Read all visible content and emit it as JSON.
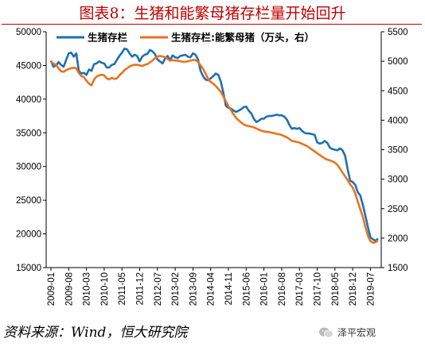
{
  "title": "图表8：生猪和能繁母猪存栏量开始回升",
  "source": "资料来源：Wind，恒大研究院",
  "watermark": "泽平宏观",
  "colors": {
    "title": "#c00000",
    "series_1": "#1f6fb5",
    "series_2": "#e8731f"
  },
  "chart_data": {
    "type": "line",
    "legend_position": "top",
    "grid": false,
    "x_ticks": [
      "2009-01",
      "2009-08",
      "2010-03",
      "2010-10",
      "2011-05",
      "2011-12",
      "2012-07",
      "2013-02",
      "2013-09",
      "2014-04",
      "2014-11",
      "2015-06",
      "2016-01",
      "2016-08",
      "2017-03",
      "2017-10",
      "2018-05",
      "2018-12",
      "2019-07"
    ],
    "x_range": [
      "2009-01",
      "2019-10"
    ],
    "y_left": {
      "min": 15000,
      "max": 50000,
      "ticks": [
        15000,
        20000,
        25000,
        30000,
        35000,
        40000,
        45000,
        50000
      ]
    },
    "y_right": {
      "min": 1500,
      "max": 5500,
      "ticks": [
        1500,
        2000,
        2500,
        3000,
        3500,
        4000,
        4500,
        5000,
        5500
      ]
    },
    "series": [
      {
        "name": "生猪存栏",
        "axis": "left",
        "color": "#1f6fb5",
        "points": [
          [
            "2009-01",
            45700
          ],
          [
            "2009-02",
            44800
          ],
          [
            "2009-03",
            45000
          ],
          [
            "2009-04",
            45500
          ],
          [
            "2009-05",
            45100
          ],
          [
            "2009-06",
            44800
          ],
          [
            "2009-07",
            45800
          ],
          [
            "2009-08",
            46800
          ],
          [
            "2009-09",
            46900
          ],
          [
            "2009-10",
            46300
          ],
          [
            "2009-11",
            46800
          ],
          [
            "2009-12",
            44200
          ],
          [
            "2010-01",
            43800
          ],
          [
            "2010-02",
            43900
          ],
          [
            "2010-03",
            43600
          ],
          [
            "2010-04",
            44400
          ],
          [
            "2010-05",
            44200
          ],
          [
            "2010-06",
            45200
          ],
          [
            "2010-07",
            45300
          ],
          [
            "2010-08",
            45600
          ],
          [
            "2010-09",
            45400
          ],
          [
            "2010-10",
            45300
          ],
          [
            "2010-11",
            44700
          ],
          [
            "2010-12",
            44700
          ],
          [
            "2011-01",
            45100
          ],
          [
            "2011-02",
            45200
          ],
          [
            "2011-03",
            45800
          ],
          [
            "2011-04",
            46400
          ],
          [
            "2011-05",
            46900
          ],
          [
            "2011-06",
            47500
          ],
          [
            "2011-07",
            47400
          ],
          [
            "2011-08",
            46800
          ],
          [
            "2011-09",
            46300
          ],
          [
            "2011-10",
            46600
          ],
          [
            "2011-11",
            46400
          ],
          [
            "2011-12",
            45600
          ],
          [
            "2012-01",
            46300
          ],
          [
            "2012-02",
            46600
          ],
          [
            "2012-03",
            46700
          ],
          [
            "2012-04",
            47300
          ],
          [
            "2012-05",
            47100
          ],
          [
            "2012-06",
            46700
          ],
          [
            "2012-07",
            45900
          ],
          [
            "2012-08",
            45600
          ],
          [
            "2012-09",
            45300
          ],
          [
            "2012-10",
            46000
          ],
          [
            "2012-11",
            46400
          ],
          [
            "2012-12",
            45800
          ],
          [
            "2013-01",
            46500
          ],
          [
            "2013-02",
            46200
          ],
          [
            "2013-03",
            46100
          ],
          [
            "2013-04",
            46400
          ],
          [
            "2013-05",
            46500
          ],
          [
            "2013-06",
            46600
          ],
          [
            "2013-07",
            46300
          ],
          [
            "2013-08",
            46200
          ],
          [
            "2013-09",
            46800
          ],
          [
            "2013-10",
            46600
          ],
          [
            "2013-11",
            45900
          ],
          [
            "2013-12",
            44200
          ],
          [
            "2014-01",
            43400
          ],
          [
            "2014-02",
            42900
          ],
          [
            "2014-03",
            42800
          ],
          [
            "2014-04",
            43100
          ],
          [
            "2014-05",
            43400
          ],
          [
            "2014-06",
            43800
          ],
          [
            "2014-07",
            43600
          ],
          [
            "2014-08",
            42600
          ],
          [
            "2014-09",
            40900
          ],
          [
            "2014-10",
            39000
          ],
          [
            "2014-11",
            38700
          ],
          [
            "2014-12",
            38600
          ],
          [
            "2015-01",
            38300
          ],
          [
            "2015-02",
            38100
          ],
          [
            "2015-03",
            38300
          ],
          [
            "2015-04",
            38500
          ],
          [
            "2015-05",
            38800
          ],
          [
            "2015-06",
            38900
          ],
          [
            "2015-07",
            38300
          ],
          [
            "2015-08",
            37900
          ],
          [
            "2015-09",
            37100
          ],
          [
            "2015-10",
            36600
          ],
          [
            "2015-11",
            36800
          ],
          [
            "2015-12",
            37100
          ],
          [
            "2016-01",
            37100
          ],
          [
            "2016-02",
            37400
          ],
          [
            "2016-03",
            37500
          ],
          [
            "2016-04",
            37500
          ],
          [
            "2016-05",
            37600
          ],
          [
            "2016-06",
            37700
          ],
          [
            "2016-07",
            37600
          ],
          [
            "2016-08",
            37600
          ],
          [
            "2016-09",
            37400
          ],
          [
            "2016-10",
            37000
          ],
          [
            "2016-11",
            36200
          ],
          [
            "2016-12",
            35600
          ],
          [
            "2017-01",
            35700
          ],
          [
            "2017-02",
            35600
          ],
          [
            "2017-03",
            35700
          ],
          [
            "2017-04",
            35300
          ],
          [
            "2017-05",
            35000
          ],
          [
            "2017-06",
            34900
          ],
          [
            "2017-07",
            34900
          ],
          [
            "2017-08",
            34800
          ],
          [
            "2017-09",
            34700
          ],
          [
            "2017-10",
            33600
          ],
          [
            "2017-11",
            33400
          ],
          [
            "2017-12",
            33500
          ],
          [
            "2018-01",
            33800
          ],
          [
            "2018-02",
            33500
          ],
          [
            "2018-03",
            32800
          ],
          [
            "2018-04",
            32600
          ],
          [
            "2018-05",
            32500
          ],
          [
            "2018-06",
            32400
          ],
          [
            "2018-07",
            32700
          ],
          [
            "2018-08",
            32400
          ],
          [
            "2018-09",
            31600
          ],
          [
            "2018-10",
            29600
          ],
          [
            "2018-11",
            27900
          ],
          [
            "2018-12",
            27700
          ],
          [
            "2019-01",
            27300
          ],
          [
            "2019-02",
            26200
          ],
          [
            "2019-03",
            25700
          ],
          [
            "2019-04",
            24300
          ],
          [
            "2019-05",
            22700
          ],
          [
            "2019-06",
            21000
          ],
          [
            "2019-07",
            19500
          ],
          [
            "2019-08",
            19200
          ],
          [
            "2019-09",
            19000
          ],
          [
            "2019-10",
            19300
          ]
        ]
      },
      {
        "name": "生猪存栏:能繁母猪（万头，右）",
        "axis": "right",
        "color": "#e8731f",
        "points": [
          [
            "2009-01",
            4990
          ],
          [
            "2009-02",
            4960
          ],
          [
            "2009-03",
            4940
          ],
          [
            "2009-04",
            4880
          ],
          [
            "2009-05",
            4830
          ],
          [
            "2009-06",
            4820
          ],
          [
            "2009-07",
            4850
          ],
          [
            "2009-08",
            4870
          ],
          [
            "2009-09",
            4880
          ],
          [
            "2009-10",
            4890
          ],
          [
            "2009-11",
            4880
          ],
          [
            "2009-12",
            4800
          ],
          [
            "2010-01",
            4750
          ],
          [
            "2010-02",
            4730
          ],
          [
            "2010-03",
            4670
          ],
          [
            "2010-04",
            4620
          ],
          [
            "2010-05",
            4590
          ],
          [
            "2010-06",
            4690
          ],
          [
            "2010-07",
            4740
          ],
          [
            "2010-08",
            4760
          ],
          [
            "2010-09",
            4770
          ],
          [
            "2010-10",
            4760
          ],
          [
            "2010-11",
            4710
          ],
          [
            "2010-12",
            4690
          ],
          [
            "2011-01",
            4720
          ],
          [
            "2011-02",
            4700
          ],
          [
            "2011-03",
            4710
          ],
          [
            "2011-04",
            4760
          ],
          [
            "2011-05",
            4800
          ],
          [
            "2011-06",
            4850
          ],
          [
            "2011-07",
            4880
          ],
          [
            "2011-08",
            4910
          ],
          [
            "2011-09",
            4930
          ],
          [
            "2011-10",
            4940
          ],
          [
            "2011-11",
            4940
          ],
          [
            "2011-12",
            4930
          ],
          [
            "2012-01",
            4920
          ],
          [
            "2012-02",
            4940
          ],
          [
            "2012-03",
            4950
          ],
          [
            "2012-04",
            4980
          ],
          [
            "2012-05",
            5010
          ],
          [
            "2012-06",
            5050
          ],
          [
            "2012-07",
            5080
          ],
          [
            "2012-08",
            5090
          ],
          [
            "2012-09",
            5080
          ],
          [
            "2012-10",
            5070
          ],
          [
            "2012-11",
            5040
          ],
          [
            "2012-12",
            5010
          ],
          [
            "2013-01",
            5020
          ],
          [
            "2013-02",
            5010
          ],
          [
            "2013-03",
            5010
          ],
          [
            "2013-04",
            5000
          ],
          [
            "2013-05",
            4990
          ],
          [
            "2013-06",
            4990
          ],
          [
            "2013-07",
            5000
          ],
          [
            "2013-08",
            5010
          ],
          [
            "2013-09",
            5020
          ],
          [
            "2013-10",
            5020
          ],
          [
            "2013-11",
            4990
          ],
          [
            "2013-12",
            4930
          ],
          [
            "2014-01",
            4870
          ],
          [
            "2014-02",
            4790
          ],
          [
            "2014-03",
            4700
          ],
          [
            "2014-04",
            4650
          ],
          [
            "2014-05",
            4620
          ],
          [
            "2014-06",
            4580
          ],
          [
            "2014-07",
            4530
          ],
          [
            "2014-08",
            4480
          ],
          [
            "2014-09",
            4400
          ],
          [
            "2014-10",
            4320
          ],
          [
            "2014-11",
            4240
          ],
          [
            "2014-12",
            4170
          ],
          [
            "2015-01",
            4100
          ],
          [
            "2015-02",
            4040
          ],
          [
            "2015-03",
            4000
          ],
          [
            "2015-04",
            3960
          ],
          [
            "2015-05",
            3930
          ],
          [
            "2015-06",
            3910
          ],
          [
            "2015-07",
            3900
          ],
          [
            "2015-08",
            3890
          ],
          [
            "2015-09",
            3880
          ],
          [
            "2015-10",
            3860
          ],
          [
            "2015-11",
            3840
          ],
          [
            "2015-12",
            3820
          ],
          [
            "2016-01",
            3810
          ],
          [
            "2016-02",
            3800
          ],
          [
            "2016-03",
            3800
          ],
          [
            "2016-04",
            3790
          ],
          [
            "2016-05",
            3780
          ],
          [
            "2016-06",
            3770
          ],
          [
            "2016-07",
            3760
          ],
          [
            "2016-08",
            3750
          ],
          [
            "2016-09",
            3730
          ],
          [
            "2016-10",
            3710
          ],
          [
            "2016-11",
            3680
          ],
          [
            "2016-12",
            3650
          ],
          [
            "2017-01",
            3640
          ],
          [
            "2017-02",
            3630
          ],
          [
            "2017-03",
            3620
          ],
          [
            "2017-04",
            3600
          ],
          [
            "2017-05",
            3580
          ],
          [
            "2017-06",
            3560
          ],
          [
            "2017-07",
            3530
          ],
          [
            "2017-08",
            3500
          ],
          [
            "2017-09",
            3470
          ],
          [
            "2017-10",
            3440
          ],
          [
            "2017-11",
            3410
          ],
          [
            "2017-12",
            3380
          ],
          [
            "2018-01",
            3350
          ],
          [
            "2018-02",
            3330
          ],
          [
            "2018-03",
            3320
          ],
          [
            "2018-04",
            3300
          ],
          [
            "2018-05",
            3280
          ],
          [
            "2018-06",
            3240
          ],
          [
            "2018-07",
            3180
          ],
          [
            "2018-08",
            3110
          ],
          [
            "2018-09",
            3050
          ],
          [
            "2018-10",
            2980
          ],
          [
            "2018-11",
            2910
          ],
          [
            "2018-12",
            2860
          ],
          [
            "2019-01",
            2760
          ],
          [
            "2019-02",
            2620
          ],
          [
            "2019-03",
            2490
          ],
          [
            "2019-04",
            2360
          ],
          [
            "2019-05",
            2190
          ],
          [
            "2019-06",
            2040
          ],
          [
            "2019-07",
            1950
          ],
          [
            "2019-08",
            1920
          ],
          [
            "2019-09",
            1930
          ],
          [
            "2019-10",
            1960
          ]
        ]
      }
    ]
  }
}
